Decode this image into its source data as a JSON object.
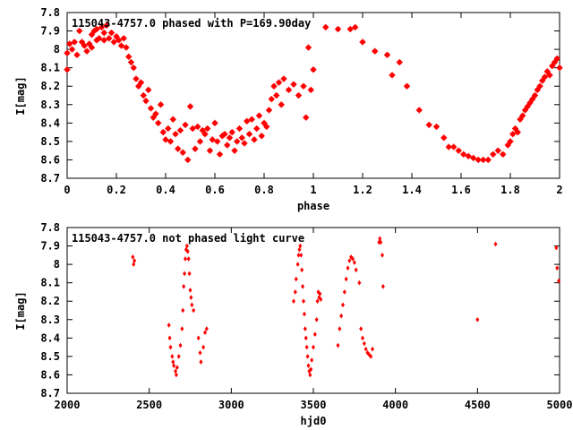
{
  "chart_data": [
    {
      "type": "scatter",
      "title": "115043-4757.0 phased with P=169.90day",
      "xlabel": "phase",
      "ylabel": "I[mag]",
      "xlim": [
        0,
        2
      ],
      "ylim": [
        8.7,
        7.8
      ],
      "y_inverted": true,
      "grid": false,
      "marker_color": "#ff0000",
      "xticks": [
        "0",
        "0.2",
        "0.4",
        "0.6",
        "0.8",
        "1",
        "1.2",
        "1.4",
        "1.6",
        "1.8",
        "2"
      ],
      "yticks": [
        "7.8",
        "7.9",
        "8",
        "8.1",
        "8.2",
        "8.3",
        "8.4",
        "8.5",
        "8.6",
        "8.7"
      ],
      "xtick_values": [
        0,
        0.2,
        0.4,
        0.6,
        0.8,
        1,
        1.2,
        1.4,
        1.6,
        1.8,
        2
      ],
      "ytick_values": [
        7.8,
        7.9,
        8,
        8.1,
        8.2,
        8.3,
        8.4,
        8.5,
        8.6,
        8.7
      ],
      "series": [
        {
          "points": [
            [
              0.0,
              8.02
            ],
            [
              0.0,
              8.11
            ],
            [
              0.01,
              7.97
            ],
            [
              0.02,
              8.0
            ],
            [
              0.03,
              7.96
            ],
            [
              0.04,
              8.03
            ],
            [
              0.05,
              7.9
            ],
            [
              0.06,
              7.96
            ],
            [
              0.07,
              7.98
            ],
            [
              0.08,
              8.01
            ],
            [
              0.09,
              7.97
            ],
            [
              0.1,
              7.92
            ],
            [
              0.1,
              7.99
            ],
            [
              0.11,
              7.9
            ],
            [
              0.12,
              7.95
            ],
            [
              0.12,
              7.89
            ],
            [
              0.13,
              7.94
            ],
            [
              0.14,
              7.88
            ],
            [
              0.15,
              7.95
            ],
            [
              0.15,
              7.91
            ],
            [
              0.16,
              7.87
            ],
            [
              0.17,
              7.94
            ],
            [
              0.18,
              7.91
            ],
            [
              0.19,
              7.96
            ],
            [
              0.2,
              7.93
            ],
            [
              0.21,
              7.95
            ],
            [
              0.22,
              7.98
            ],
            [
              0.23,
              7.94
            ],
            [
              0.24,
              7.99
            ],
            [
              0.25,
              8.04
            ],
            [
              0.26,
              8.07
            ],
            [
              0.27,
              8.1
            ],
            [
              0.28,
              8.16
            ],
            [
              0.29,
              8.2
            ],
            [
              0.3,
              8.18
            ],
            [
              0.31,
              8.25
            ],
            [
              0.32,
              8.28
            ],
            [
              0.33,
              8.22
            ],
            [
              0.34,
              8.32
            ],
            [
              0.35,
              8.37
            ],
            [
              0.36,
              8.35
            ],
            [
              0.37,
              8.4
            ],
            [
              0.38,
              8.3
            ],
            [
              0.39,
              8.45
            ],
            [
              0.4,
              8.49
            ],
            [
              0.41,
              8.43
            ],
            [
              0.42,
              8.5
            ],
            [
              0.43,
              8.38
            ],
            [
              0.44,
              8.46
            ],
            [
              0.45,
              8.54
            ],
            [
              0.46,
              8.44
            ],
            [
              0.47,
              8.56
            ],
            [
              0.48,
              8.41
            ],
            [
              0.49,
              8.6
            ],
            [
              0.5,
              8.31
            ],
            [
              0.51,
              8.43
            ],
            [
              0.52,
              8.54
            ],
            [
              0.53,
              8.42
            ],
            [
              0.54,
              8.5
            ],
            [
              0.55,
              8.44
            ],
            [
              0.56,
              8.46
            ],
            [
              0.57,
              8.43
            ],
            [
              0.58,
              8.55
            ],
            [
              0.59,
              8.49
            ],
            [
              0.6,
              8.4
            ],
            [
              0.61,
              8.5
            ],
            [
              0.62,
              8.57
            ],
            [
              0.63,
              8.47
            ],
            [
              0.64,
              8.46
            ],
            [
              0.65,
              8.52
            ],
            [
              0.66,
              8.48
            ],
            [
              0.67,
              8.45
            ],
            [
              0.68,
              8.55
            ],
            [
              0.69,
              8.5
            ],
            [
              0.7,
              8.43
            ],
            [
              0.71,
              8.48
            ],
            [
              0.72,
              8.51
            ],
            [
              0.73,
              8.39
            ],
            [
              0.74,
              8.46
            ],
            [
              0.75,
              8.38
            ],
            [
              0.76,
              8.49
            ],
            [
              0.77,
              8.43
            ],
            [
              0.78,
              8.36
            ],
            [
              0.79,
              8.47
            ],
            [
              0.8,
              8.4
            ],
            [
              0.81,
              8.42
            ],
            [
              0.82,
              8.33
            ],
            [
              0.83,
              8.27
            ],
            [
              0.84,
              8.2
            ],
            [
              0.85,
              8.25
            ],
            [
              0.86,
              8.18
            ],
            [
              0.87,
              8.3
            ],
            [
              0.88,
              8.16
            ],
            [
              0.9,
              8.22
            ],
            [
              0.92,
              8.19
            ],
            [
              0.94,
              8.25
            ],
            [
              0.96,
              8.2
            ],
            [
              0.97,
              8.37
            ],
            [
              0.98,
              7.99
            ],
            [
              0.99,
              8.22
            ],
            [
              1.0,
              8.11
            ],
            [
              1.05,
              7.88
            ],
            [
              1.1,
              7.89
            ],
            [
              1.15,
              7.89
            ],
            [
              1.17,
              7.88
            ],
            [
              1.2,
              7.96
            ],
            [
              1.25,
              8.01
            ],
            [
              1.3,
              8.03
            ],
            [
              1.32,
              8.14
            ],
            [
              1.35,
              8.07
            ],
            [
              1.38,
              8.2
            ],
            [
              1.43,
              8.33
            ],
            [
              1.47,
              8.41
            ],
            [
              1.5,
              8.42
            ],
            [
              1.53,
              8.48
            ],
            [
              1.55,
              8.53
            ],
            [
              1.57,
              8.53
            ],
            [
              1.59,
              8.55
            ],
            [
              1.61,
              8.57
            ],
            [
              1.63,
              8.58
            ],
            [
              1.65,
              8.59
            ],
            [
              1.67,
              8.6
            ],
            [
              1.69,
              8.6
            ],
            [
              1.71,
              8.6
            ],
            [
              1.73,
              8.57
            ],
            [
              1.75,
              8.55
            ],
            [
              1.77,
              8.57
            ],
            [
              1.79,
              8.52
            ],
            [
              1.8,
              8.5
            ],
            [
              1.81,
              8.46
            ],
            [
              1.82,
              8.43
            ],
            [
              1.83,
              8.45
            ],
            [
              1.84,
              8.38
            ],
            [
              1.85,
              8.36
            ],
            [
              1.86,
              8.33
            ],
            [
              1.87,
              8.31
            ],
            [
              1.88,
              8.29
            ],
            [
              1.89,
              8.27
            ],
            [
              1.9,
              8.25
            ],
            [
              1.91,
              8.22
            ],
            [
              1.92,
              8.2
            ],
            [
              1.93,
              8.17
            ],
            [
              1.94,
              8.15
            ],
            [
              1.95,
              8.12
            ],
            [
              1.96,
              8.14
            ],
            [
              1.97,
              8.09
            ],
            [
              1.98,
              8.07
            ],
            [
              1.99,
              8.05
            ],
            [
              2.0,
              8.1
            ]
          ]
        }
      ]
    },
    {
      "type": "scatter",
      "title": "115043-4757.0 not phased light curve",
      "xlabel": "hjd0",
      "ylabel": "I[mag]",
      "xlim": [
        2000,
        5000
      ],
      "ylim": [
        8.7,
        7.8
      ],
      "y_inverted": true,
      "grid": false,
      "marker_color": "#ff0000",
      "xticks": [
        "2000",
        "2500",
        "3000",
        "3500",
        "4000",
        "4500",
        "5000"
      ],
      "yticks": [
        "7.8",
        "7.9",
        "8",
        "8.1",
        "8.2",
        "8.3",
        "8.4",
        "8.5",
        "8.6",
        "8.7"
      ],
      "xtick_values": [
        2000,
        2500,
        3000,
        3500,
        4000,
        4500,
        5000
      ],
      "ytick_values": [
        7.8,
        7.9,
        8,
        8.1,
        8.2,
        8.3,
        8.4,
        8.5,
        8.6,
        8.7
      ],
      "series": [
        {
          "points": [
            [
              2400,
              7.96
            ],
            [
              2405,
              8.0
            ],
            [
              2410,
              7.98
            ],
            [
              2620,
              8.33
            ],
            [
              2625,
              8.4
            ],
            [
              2630,
              8.45
            ],
            [
              2640,
              8.5
            ],
            [
              2645,
              8.53
            ],
            [
              2650,
              8.55
            ],
            [
              2660,
              8.58
            ],
            [
              2665,
              8.6
            ],
            [
              2670,
              8.56
            ],
            [
              2680,
              8.5
            ],
            [
              2690,
              8.44
            ],
            [
              2700,
              8.35
            ],
            [
              2705,
              8.25
            ],
            [
              2710,
              8.12
            ],
            [
              2715,
              8.05
            ],
            [
              2720,
              7.97
            ],
            [
              2725,
              7.92
            ],
            [
              2730,
              7.9
            ],
            [
              2735,
              7.93
            ],
            [
              2740,
              7.97
            ],
            [
              2745,
              8.05
            ],
            [
              2750,
              8.14
            ],
            [
              2755,
              8.18
            ],
            [
              2760,
              8.22
            ],
            [
              2770,
              8.25
            ],
            [
              2800,
              8.4
            ],
            [
              2810,
              8.48
            ],
            [
              2815,
              8.53
            ],
            [
              2830,
              8.45
            ],
            [
              2840,
              8.37
            ],
            [
              2850,
              8.35
            ],
            [
              3380,
              8.2
            ],
            [
              3390,
              8.15
            ],
            [
              3395,
              8.08
            ],
            [
              3405,
              8.0
            ],
            [
              3410,
              7.95
            ],
            [
              3415,
              7.92
            ],
            [
              3420,
              7.9
            ],
            [
              3425,
              7.95
            ],
            [
              3430,
              8.03
            ],
            [
              3435,
              8.12
            ],
            [
              3440,
              8.2
            ],
            [
              3445,
              8.27
            ],
            [
              3450,
              8.35
            ],
            [
              3455,
              8.4
            ],
            [
              3460,
              8.45
            ],
            [
              3465,
              8.5
            ],
            [
              3470,
              8.55
            ],
            [
              3475,
              8.58
            ],
            [
              3480,
              8.6
            ],
            [
              3485,
              8.57
            ],
            [
              3490,
              8.52
            ],
            [
              3500,
              8.45
            ],
            [
              3510,
              8.38
            ],
            [
              3520,
              8.3
            ],
            [
              3525,
              8.2
            ],
            [
              3530,
              8.15
            ],
            [
              3535,
              8.18
            ],
            [
              3540,
              8.16
            ],
            [
              3545,
              8.19
            ],
            [
              3650,
              8.44
            ],
            [
              3660,
              8.35
            ],
            [
              3670,
              8.28
            ],
            [
              3680,
              8.22
            ],
            [
              3690,
              8.15
            ],
            [
              3700,
              8.08
            ],
            [
              3710,
              8.02
            ],
            [
              3720,
              7.98
            ],
            [
              3730,
              7.96
            ],
            [
              3740,
              7.97
            ],
            [
              3750,
              7.99
            ],
            [
              3760,
              8.03
            ],
            [
              3780,
              8.1
            ],
            [
              3790,
              8.35
            ],
            [
              3800,
              8.4
            ],
            [
              3810,
              8.43
            ],
            [
              3820,
              8.46
            ],
            [
              3830,
              8.48
            ],
            [
              3840,
              8.49
            ],
            [
              3850,
              8.5
            ],
            [
              3860,
              8.46
            ],
            [
              3900,
              7.88
            ],
            [
              3905,
              7.86
            ],
            [
              3910,
              7.88
            ],
            [
              3920,
              7.95
            ],
            [
              3925,
              8.12
            ],
            [
              4500,
              8.3
            ],
            [
              4610,
              7.89
            ],
            [
              4980,
              7.91
            ],
            [
              4985,
              8.02
            ],
            [
              4995,
              8.09
            ]
          ]
        }
      ]
    }
  ]
}
